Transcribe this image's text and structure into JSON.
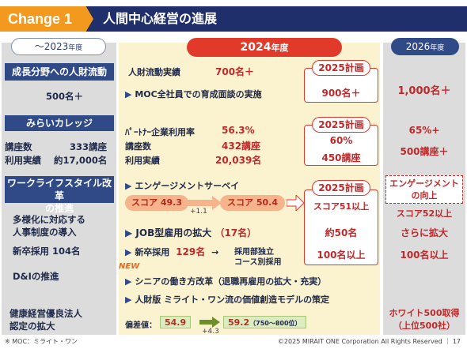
{
  "header": {
    "change_label": "Change 1",
    "title": "人間中心経営の進展"
  },
  "columns": {
    "left_label": "～2023",
    "left_suffix": "年度",
    "mid_label": "2024",
    "mid_suffix": "年度",
    "right_label": "2026",
    "right_suffix": "年度"
  },
  "section1": {
    "title": "成長分野への人財流動",
    "left_value": "500名＋",
    "mid_row1_label": "人財流動実績",
    "mid_row1_value": "700名＋",
    "mid_row2_label": "MOC全社員での育成面談の実施",
    "plan_head": "2025計画",
    "plan_value": "900名＋",
    "right_value": "1,000名＋"
  },
  "section2": {
    "title": "みらいカレッジ",
    "left_row1_label": "講座数",
    "left_row1_value": "333講座",
    "left_row2_label": "利用実績",
    "left_row2_value": "約17,000名",
    "mid_row1_label": "ﾊﾟｰﾄﾅｰ企業利用率",
    "mid_row1_value": "56.3%",
    "mid_row2_label": "講座数",
    "mid_row2_value": "432講座",
    "mid_row3_label": "利用実績",
    "mid_row3_value": "20,039名",
    "plan_head": "2025計画",
    "plan_value1": "60%",
    "plan_value2": "450講座",
    "right_value1": "65%+",
    "right_value2": "500講座＋"
  },
  "section3": {
    "title_line1": "ワークライフスタイル改革",
    "title_line2": "の推進",
    "engagement_label": "エンゲージメントサーベイ",
    "score_start": "スコア 49.3",
    "score_delta": "+1.1",
    "score_end": "スコア 50.4",
    "plan_head": "2025計画",
    "plan_score": "スコア51以上",
    "right_box_line1": "エンゲージメント",
    "right_box_line2": "の向上",
    "right_score": "スコア52以上",
    "diverse_line1": "多様化に対応する",
    "diverse_line2": "人事制度の導入",
    "job_label": "JOB型雇用の拡大",
    "job_value": "（17名）",
    "plan_job": "約50名",
    "right_job": "さらに拡大",
    "newgrad_left": "新卒採用 104名",
    "newgrad_mid_label": "新卒採用",
    "newgrad_mid_value": "129名",
    "newgrad_arrow": "→",
    "newgrad_note1": "採用部独立",
    "newgrad_note2": "コース別採用",
    "plan_newgrad": "100名以上",
    "right_newgrad": "100名以上",
    "new_badge": "NEW",
    "di_label": "D&Iの推進",
    "senior_label": "シニアの働き方改革（退職再雇用の拡大・充実）",
    "talent_label": "人財版 ミライト・ワン流の価値創造モデルの策定",
    "health_line1": "健康経営優良法人",
    "health_line2": "認定の拡大",
    "dev_label": "偏差値：",
    "dev_start": "54.9",
    "dev_end": "59.2",
    "dev_end_note": "（750～800位）",
    "dev_delta": "+4.3",
    "right_white1": "ホワイト500取得",
    "right_white2": "（上位500社）"
  },
  "footer": {
    "note": "※ MOC：ミライト・ワン",
    "copyright": "©2025 MIRAIT ONE Corporation All Rights Reserved ｜ 17"
  },
  "colors": {
    "navy": "#1f2f6b",
    "orange": "#f39a1e",
    "red": "#e13a2a",
    "section_blue": "#2f4a87"
  }
}
